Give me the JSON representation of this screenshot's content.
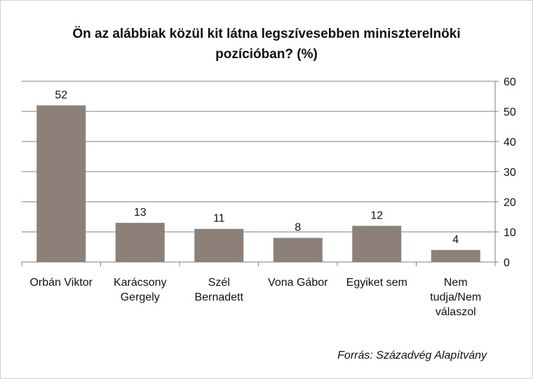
{
  "chart_data": {
    "type": "bar",
    "title": "Ön az alábbiak közül kit látna legszívesebben miniszterelnöki pozícióban? (%)",
    "categories": [
      [
        "Orbán Viktor"
      ],
      [
        "Karácsony",
        "Gergely"
      ],
      [
        "Szél",
        "Bernadett"
      ],
      [
        "Vona Gábor"
      ],
      [
        "Egyiket sem"
      ],
      [
        "Nem",
        "tudja/Nem",
        "válaszol"
      ]
    ],
    "values": [
      52,
      13,
      11,
      8,
      12,
      4
    ],
    "data_labels": [
      "52",
      "13",
      "11",
      "8",
      "12",
      "4"
    ],
    "ylim": [
      0,
      60
    ],
    "yticks": [
      0,
      10,
      20,
      30,
      40,
      50,
      60
    ],
    "y_axis_side": "right",
    "grid": true,
    "bar_color": "#8c8079",
    "source": "Forrás: Századvég Alapítvány"
  }
}
